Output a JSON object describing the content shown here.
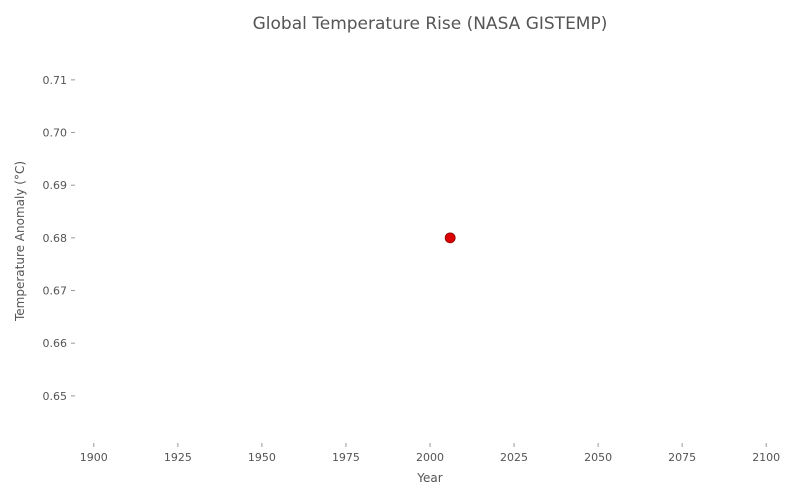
{
  "chart_data": {
    "type": "scatter",
    "title": "Global Temperature Rise (NASA GISTEMP)",
    "xlabel": "Year",
    "ylabel": "Temperature Anomaly (°C)",
    "xlim": [
      1895,
      2105
    ],
    "ylim": [
      0.642,
      0.717
    ],
    "x_ticks": [
      1900,
      1925,
      1950,
      1975,
      2000,
      2025,
      2050,
      2075,
      2100
    ],
    "y_ticks": [
      0.65,
      0.66,
      0.67,
      0.68,
      0.69,
      0.7,
      0.71
    ],
    "y_tick_labels": [
      "0.65",
      "0.66",
      "0.67",
      "0.68",
      "0.69",
      "0.70",
      "0.71"
    ],
    "grid": false,
    "series": [
      {
        "points": [
          {
            "x": 2006,
            "y": 0.68
          }
        ],
        "color": "#dd0000"
      }
    ]
  }
}
